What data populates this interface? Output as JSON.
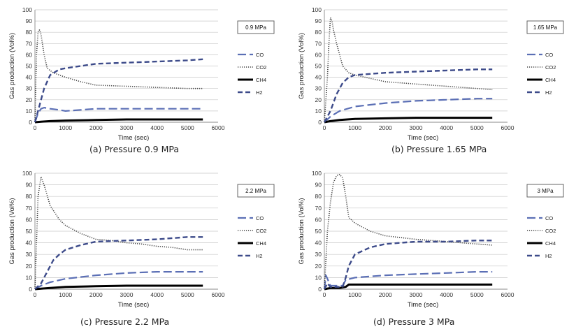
{
  "chart_data": [
    {
      "type": "line",
      "caption": "(a) Pressure 0.9 MPa",
      "title_box": "0.9 MPa",
      "xlabel": "Time (sec)",
      "ylabel": "Gas production (Vol%)",
      "xlim": [
        0,
        6000
      ],
      "ylim": [
        0,
        100
      ],
      "xticks": [
        0,
        1000,
        2000,
        3000,
        4000,
        5000,
        6000
      ],
      "yticks": [
        0,
        10,
        20,
        30,
        40,
        50,
        60,
        70,
        80,
        90,
        100
      ],
      "grid": true,
      "legend_position": "right",
      "series": [
        {
          "name": "CO",
          "color": "#5b6fb5",
          "dash": "long-dash",
          "x": [
            0,
            100,
            200,
            300,
            500,
            800,
            1000,
            1500,
            2000,
            3000,
            4000,
            5000,
            5500
          ],
          "y": [
            0,
            8,
            12,
            13,
            12,
            11,
            10,
            11,
            12,
            12,
            12,
            12,
            12
          ]
        },
        {
          "name": "CO2",
          "color": "#444444",
          "dash": "dotted",
          "x": [
            0,
            50,
            100,
            150,
            200,
            300,
            400,
            600,
            800,
            1000,
            1500,
            2000,
            3000,
            4000,
            5000,
            5500
          ],
          "y": [
            0,
            60,
            80,
            82,
            78,
            60,
            48,
            44,
            42,
            40,
            36,
            33,
            32,
            31,
            30,
            30
          ]
        },
        {
          "name": "CH4",
          "color": "#000000",
          "dash": "solid",
          "x": [
            0,
            200,
            500,
            1000,
            2000,
            3000,
            4000,
            5000,
            5500
          ],
          "y": [
            0,
            0.5,
            1,
            1.5,
            2,
            2.5,
            2.5,
            2.5,
            2.5
          ]
        },
        {
          "name": "H2",
          "color": "#3d4b8a",
          "dash": "dashed",
          "x": [
            0,
            100,
            200,
            300,
            500,
            800,
            1000,
            1500,
            2000,
            3000,
            4000,
            5000,
            5500
          ],
          "y": [
            0,
            10,
            20,
            30,
            42,
            47,
            48,
            50,
            52,
            53,
            54,
            55,
            56
          ]
        }
      ]
    },
    {
      "type": "line",
      "caption": "(b) Pressure 1.65 MPa",
      "title_box": "1.65 MPa",
      "xlabel": "Time (sec)",
      "ylabel": "Gas production (Vol%)",
      "xlim": [
        0,
        6000
      ],
      "ylim": [
        0,
        100
      ],
      "xticks": [
        0,
        1000,
        2000,
        3000,
        4000,
        5000,
        6000
      ],
      "yticks": [
        0,
        10,
        20,
        30,
        40,
        50,
        60,
        70,
        80,
        90,
        100
      ],
      "grid": true,
      "legend_position": "right",
      "series": [
        {
          "name": "CO",
          "color": "#5b6fb5",
          "dash": "long-dash",
          "x": [
            0,
            200,
            500,
            1000,
            2000,
            3000,
            4000,
            5000,
            5500
          ],
          "y": [
            0,
            5,
            10,
            14,
            17,
            19,
            20,
            21,
            21
          ]
        },
        {
          "name": "CO2",
          "color": "#444444",
          "dash": "dotted",
          "x": [
            0,
            100,
            150,
            200,
            250,
            300,
            400,
            600,
            800,
            1000,
            1500,
            2000,
            3000,
            4000,
            5000,
            5500
          ],
          "y": [
            0,
            40,
            70,
            93,
            90,
            82,
            70,
            50,
            44,
            42,
            39,
            36,
            34,
            32,
            30,
            29
          ]
        },
        {
          "name": "CH4",
          "color": "#000000",
          "dash": "solid",
          "x": [
            0,
            200,
            500,
            1000,
            2000,
            3000,
            4000,
            5000,
            5500
          ],
          "y": [
            0,
            1,
            2,
            3,
            3.5,
            4,
            4,
            4,
            4
          ]
        },
        {
          "name": "H2",
          "color": "#3d4b8a",
          "dash": "dashed",
          "x": [
            0,
            200,
            400,
            600,
            800,
            1000,
            1500,
            2000,
            3000,
            4000,
            5000,
            5500
          ],
          "y": [
            0,
            10,
            25,
            35,
            40,
            42,
            43,
            44,
            45,
            46,
            47,
            47
          ]
        }
      ]
    },
    {
      "type": "line",
      "caption": "(c) Pressure 2.2 MPa",
      "title_box": "2.2 MPa",
      "xlabel": "Time (sec)",
      "ylabel": "Gas production (Vol%)",
      "xlim": [
        0,
        6000
      ],
      "ylim": [
        0,
        100
      ],
      "xticks": [
        0,
        1000,
        2000,
        3000,
        4000,
        5000,
        6000
      ],
      "yticks": [
        0,
        10,
        20,
        30,
        40,
        50,
        60,
        70,
        80,
        90,
        100
      ],
      "grid": true,
      "legend_position": "right",
      "series": [
        {
          "name": "CO",
          "color": "#5b6fb5",
          "dash": "long-dash",
          "x": [
            0,
            200,
            500,
            1000,
            2000,
            3000,
            4000,
            5000,
            5500
          ],
          "y": [
            0,
            3,
            6,
            9,
            12,
            14,
            15,
            15,
            15
          ]
        },
        {
          "name": "CO2",
          "color": "#444444",
          "dash": "dotted",
          "x": [
            0,
            100,
            200,
            300,
            500,
            800,
            1000,
            1500,
            2000,
            2500,
            3000,
            3500,
            4000,
            4500,
            5000,
            5500
          ],
          "y": [
            0,
            80,
            97,
            90,
            72,
            60,
            55,
            48,
            43,
            42,
            40,
            39,
            37,
            36,
            34,
            34
          ]
        },
        {
          "name": "CH4",
          "color": "#000000",
          "dash": "solid",
          "x": [
            0,
            200,
            500,
            1000,
            2000,
            3000,
            4000,
            5000,
            5500
          ],
          "y": [
            0,
            0.5,
            1,
            2,
            2.5,
            3,
            3,
            3,
            3
          ]
        },
        {
          "name": "H2",
          "color": "#3d4b8a",
          "dash": "dashed",
          "x": [
            0,
            200,
            400,
            600,
            800,
            1000,
            1500,
            2000,
            3000,
            4000,
            5000,
            5500
          ],
          "y": [
            0,
            5,
            15,
            25,
            30,
            34,
            38,
            41,
            42,
            43,
            45,
            45
          ]
        }
      ]
    },
    {
      "type": "line",
      "caption": "(d) Pressure 3 MPa",
      "title_box": "3 MPa",
      "xlabel": "Time (sec)",
      "ylabel": "Gas production (Vol%)",
      "xlim": [
        0,
        6000
      ],
      "ylim": [
        0,
        100
      ],
      "xticks": [
        0,
        1000,
        2000,
        3000,
        4000,
        5000,
        6000
      ],
      "yticks": [
        0,
        10,
        20,
        30,
        40,
        50,
        60,
        70,
        80,
        90,
        100
      ],
      "grid": true,
      "legend_position": "right",
      "series": [
        {
          "name": "CO",
          "color": "#5b6fb5",
          "dash": "long-dash",
          "x": [
            0,
            50,
            200,
            400,
            600,
            700,
            1000,
            2000,
            3000,
            4000,
            5000,
            5500
          ],
          "y": [
            0,
            12,
            3,
            3,
            3,
            8,
            10,
            12,
            13,
            14,
            15,
            15
          ]
        },
        {
          "name": "CO2",
          "color": "#444444",
          "dash": "dotted",
          "x": [
            0,
            100,
            200,
            300,
            400,
            500,
            600,
            700,
            800,
            1000,
            1500,
            2000,
            3000,
            4000,
            5000,
            5500
          ],
          "y": [
            0,
            50,
            75,
            92,
            98,
            99,
            96,
            80,
            62,
            57,
            50,
            46,
            43,
            41,
            39,
            38
          ]
        },
        {
          "name": "CH4",
          "color": "#000000",
          "dash": "solid",
          "x": [
            0,
            200,
            500,
            700,
            800,
            1000,
            2000,
            3000,
            4000,
            5000,
            5500
          ],
          "y": [
            0,
            1,
            1,
            2,
            4,
            4,
            4,
            4,
            4,
            4,
            4
          ]
        },
        {
          "name": "H2",
          "color": "#3d4b8a",
          "dash": "dashed",
          "x": [
            0,
            100,
            200,
            600,
            700,
            800,
            1000,
            1500,
            2000,
            3000,
            4000,
            5000,
            5500
          ],
          "y": [
            0,
            5,
            2,
            2,
            10,
            20,
            30,
            36,
            39,
            41,
            41,
            42,
            42
          ]
        }
      ]
    }
  ]
}
